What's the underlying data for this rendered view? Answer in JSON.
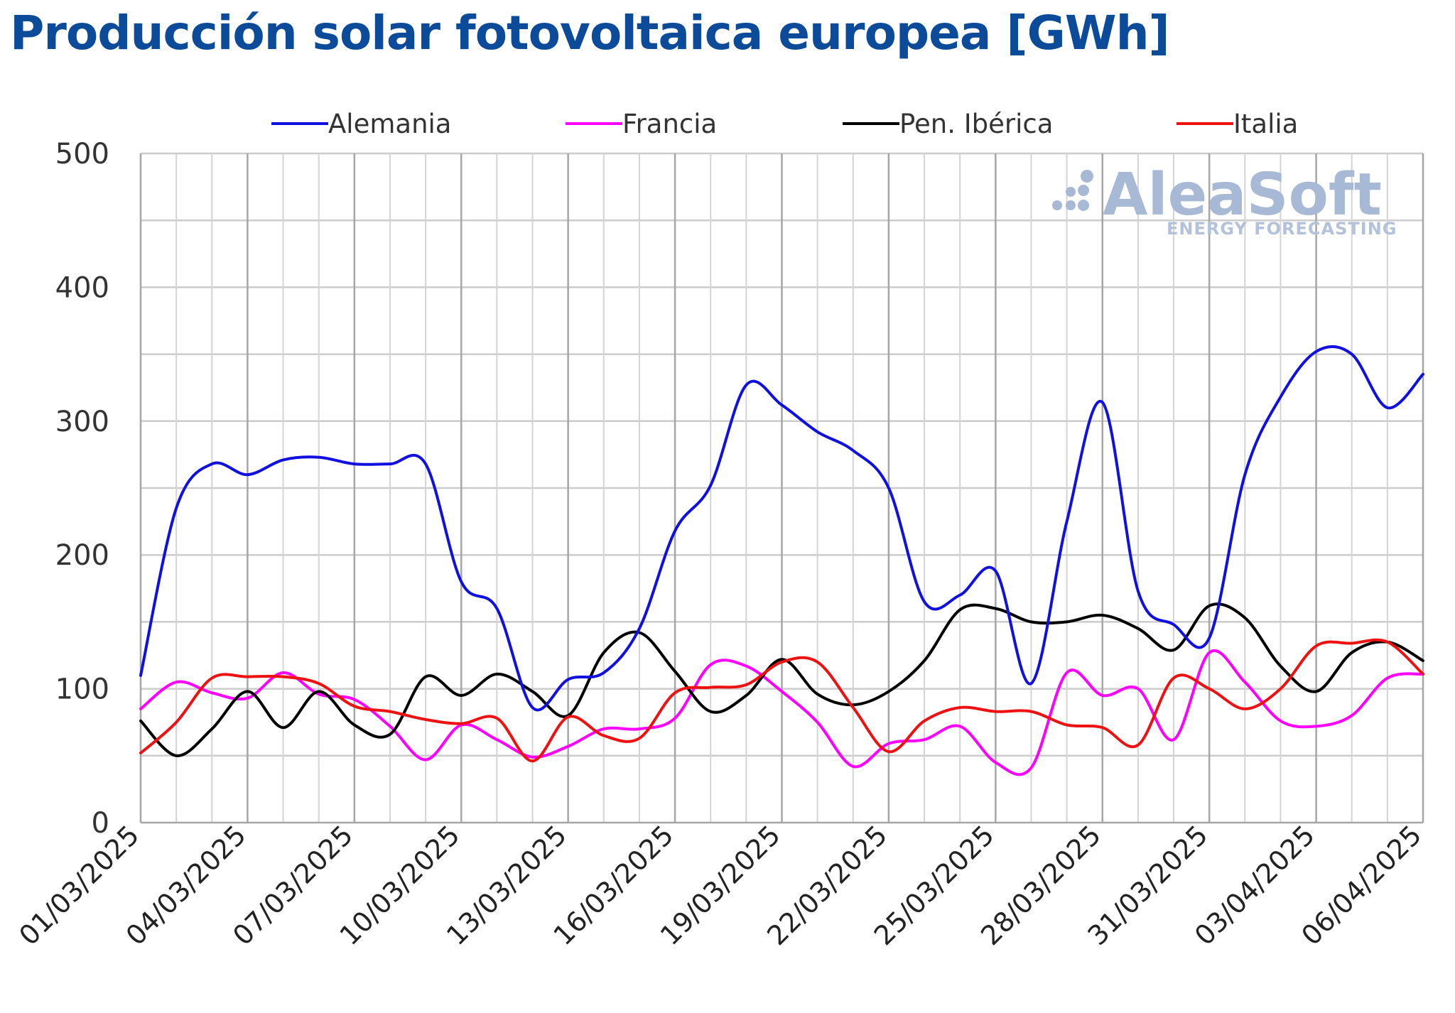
{
  "chart_data": {
    "type": "line",
    "title": "Producción solar fotovoltaica europea [GWh]",
    "xlabel": "",
    "ylabel": "",
    "ylim": [
      0,
      500
    ],
    "yticks": [
      "0",
      "100",
      "200",
      "300",
      "400",
      "500"
    ],
    "x_tick_labels": [
      "01/03/2025",
      "04/03/2025",
      "07/03/2025",
      "10/03/2025",
      "13/03/2025",
      "16/03/2025",
      "19/03/2025",
      "22/03/2025",
      "25/03/2025",
      "28/03/2025",
      "31/03/2025",
      "03/04/2025",
      "06/04/2025"
    ],
    "grid": true,
    "legend_position": "top",
    "x": [
      "01/03/2025",
      "02/03/2025",
      "03/03/2025",
      "04/03/2025",
      "05/03/2025",
      "06/03/2025",
      "07/03/2025",
      "08/03/2025",
      "09/03/2025",
      "10/03/2025",
      "11/03/2025",
      "12/03/2025",
      "13/03/2025",
      "14/03/2025",
      "15/03/2025",
      "16/03/2025",
      "17/03/2025",
      "18/03/2025",
      "19/03/2025",
      "20/03/2025",
      "21/03/2025",
      "22/03/2025",
      "23/03/2025",
      "24/03/2025",
      "25/03/2025",
      "26/03/2025",
      "27/03/2025",
      "28/03/2025",
      "29/03/2025",
      "30/03/2025",
      "31/03/2025",
      "01/04/2025",
      "02/04/2025",
      "03/04/2025",
      "04/04/2025",
      "05/04/2025",
      "06/04/2025"
    ],
    "series": [
      {
        "name": "Alemania",
        "color": "#1010e0",
        "values": [
          110,
          235,
          268,
          260,
          271,
          273,
          268,
          268,
          268,
          180,
          160,
          86,
          107,
          112,
          145,
          218,
          252,
          327,
          312,
          292,
          278,
          250,
          165,
          170,
          188,
          104,
          225,
          314,
          173,
          148,
          138,
          260,
          318,
          352,
          350,
          310,
          335
        ]
      },
      {
        "name": "Francia",
        "color": "#ff00ff",
        "values": [
          85,
          105,
          97,
          93,
          112,
          96,
          92,
          72,
          47,
          73,
          62,
          49,
          57,
          70,
          70,
          78,
          118,
          117,
          98,
          75,
          42,
          59,
          62,
          72,
          45,
          41,
          112,
          95,
          100,
          62,
          127,
          105,
          76,
          72,
          80,
          108,
          111
        ]
      },
      {
        "name": "Pen. Ibérica",
        "color": "#000000",
        "values": [
          76,
          50,
          70,
          98,
          71,
          98,
          73,
          66,
          109,
          95,
          111,
          98,
          80,
          127,
          142,
          113,
          83,
          95,
          122,
          96,
          88,
          98,
          121,
          159,
          160,
          150,
          150,
          155,
          145,
          129,
          162,
          153,
          117,
          98,
          127,
          135,
          121
        ]
      },
      {
        "name": "Italia",
        "color": "#ee1111",
        "values": [
          52,
          75,
          108,
          109,
          109,
          104,
          87,
          83,
          77,
          74,
          78,
          46,
          79,
          65,
          63,
          97,
          101,
          103,
          120,
          120,
          86,
          53,
          76,
          86,
          83,
          83,
          73,
          71,
          58,
          108,
          100,
          85,
          100,
          132,
          134,
          135,
          111
        ]
      }
    ]
  },
  "legend": [
    {
      "name": "Alemania",
      "color": "#1010e0"
    },
    {
      "name": "Francia",
      "color": "#ff00ff"
    },
    {
      "name": "Pen. Ibérica",
      "color": "#000000"
    },
    {
      "name": "Italia",
      "color": "#ee1111"
    }
  ],
  "watermark": {
    "name": "AleaSoft",
    "subtitle": "ENERGY FORECASTING"
  }
}
